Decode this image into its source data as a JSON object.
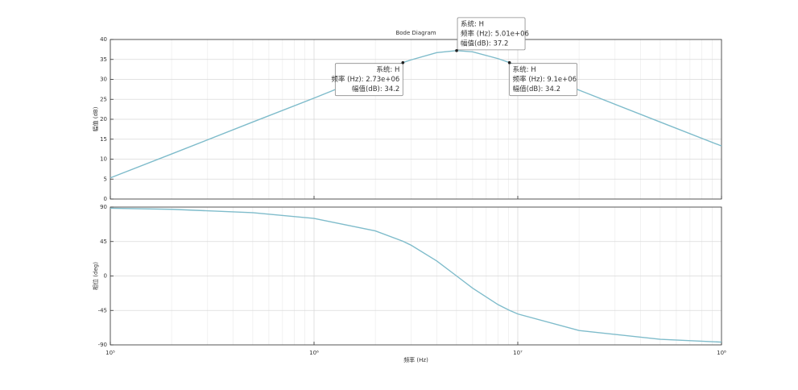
{
  "chart_data": [
    {
      "type": "line",
      "title": "Bode Diagram",
      "ylabel": "幅值 (dB)",
      "xscale": "log",
      "x": [
        100000,
        200000,
        500000,
        1000000,
        2000000,
        2730000,
        3000000,
        4000000,
        5010000,
        6000000,
        8000000,
        9100000,
        10000000,
        20000000,
        50000000,
        100000000
      ],
      "values": [
        5.3,
        11.3,
        19.3,
        25.3,
        31.5,
        34.2,
        34.9,
        36.7,
        37.2,
        36.9,
        35.2,
        34.2,
        33.4,
        27.3,
        19.3,
        13.3
      ],
      "color": "#7fbccb",
      "xlim": [
        100000,
        100000000
      ],
      "xticks": [
        100000,
        1000000,
        10000000,
        100000000
      ],
      "ylim": [
        0,
        40
      ],
      "yticks": [
        0,
        5,
        10,
        15,
        20,
        25,
        30,
        35,
        40
      ],
      "grid": true,
      "annotations": [
        {
          "x": 2730000,
          "y": 34.2,
          "lines": [
            "系统: H",
            "频率 (Hz): 2.73e+06",
            "幅值(dB): 34.2"
          ]
        },
        {
          "x": 5010000,
          "y": 37.2,
          "lines": [
            "系统: H",
            "频率 (Hz): 5.01e+06",
            "幅值(dB): 37.2"
          ]
        },
        {
          "x": 9100000,
          "y": 34.2,
          "lines": [
            "系统: H",
            "频率 (Hz): 9.1e+06",
            "幅值(dB): 34.2"
          ]
        }
      ]
    },
    {
      "type": "line",
      "ylabel": "相位 (deg)",
      "xlabel": "频率 (Hz)",
      "xscale": "log",
      "x": [
        100000,
        200000,
        500000,
        1000000,
        2000000,
        2730000,
        3000000,
        4000000,
        5010000,
        6000000,
        8000000,
        9100000,
        10000000,
        20000000,
        50000000,
        100000000
      ],
      "values": [
        88.5,
        87.1,
        82.7,
        75.2,
        58.9,
        45.4,
        40.1,
        19.7,
        0,
        -15.9,
        -37.4,
        -44.9,
        -49.6,
        -71.2,
        -82.7,
        -86.4
      ],
      "color": "#7fbccb",
      "xlim": [
        100000,
        100000000
      ],
      "xticks": [
        {
          "value": 100000,
          "label": "10⁵"
        },
        {
          "value": 1000000,
          "label": "10⁶"
        },
        {
          "value": 10000000,
          "label": "10⁷"
        },
        {
          "value": 100000000,
          "label": "10⁸"
        }
      ],
      "ylim": [
        -90,
        90
      ],
      "yticks": [
        -90,
        -45,
        0,
        45,
        90
      ],
      "grid": true
    }
  ]
}
